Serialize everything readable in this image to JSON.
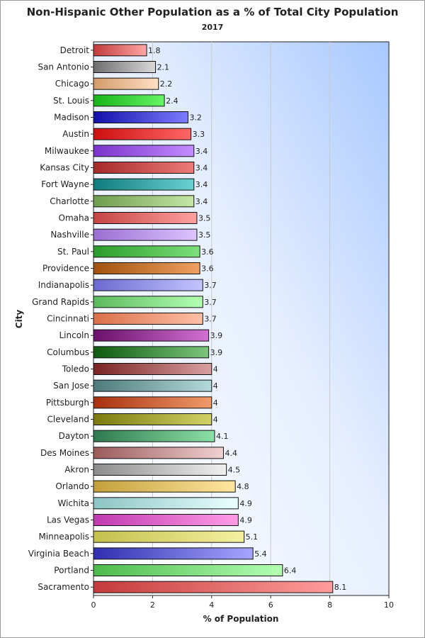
{
  "chart_data": {
    "type": "bar",
    "orientation": "horizontal",
    "title": "Non-Hispanic Other Population as a % of Total City Population",
    "subtitle": "2017",
    "xlabel": "% of Population",
    "ylabel": "City",
    "xlim": [
      0,
      10
    ],
    "xticks": [
      0,
      2,
      4,
      6,
      8,
      10
    ],
    "grid": true,
    "categories": [
      "Detroit",
      "San Antonio",
      "Chicago",
      "St. Louis",
      "Madison",
      "Austin",
      "Milwaukee",
      "Kansas City",
      "Fort Wayne",
      "Charlotte",
      "Omaha",
      "Nashville",
      "St. Paul",
      "Providence",
      "Indianapolis",
      "Grand Rapids",
      "Cincinnati",
      "Lincoln",
      "Columbus",
      "Toledo",
      "San Jose",
      "Pittsburgh",
      "Cleveland",
      "Dayton",
      "Des Moines",
      "Akron",
      "Orlando",
      "Wichita",
      "Las Vegas",
      "Minneapolis",
      "Virginia Beach",
      "Portland",
      "Sacramento"
    ],
    "values": [
      1.8,
      2.1,
      2.2,
      2.4,
      3.2,
      3.3,
      3.4,
      3.4,
      3.4,
      3.4,
      3.5,
      3.5,
      3.6,
      3.6,
      3.7,
      3.7,
      3.7,
      3.9,
      3.9,
      4,
      4,
      4,
      4,
      4.1,
      4.4,
      4.5,
      4.8,
      4.9,
      4.9,
      5.1,
      5.4,
      6.4,
      8.1
    ],
    "value_labels": [
      "1.8",
      "2.1",
      "2.2",
      "2.4",
      "3.2",
      "3.3",
      "3.4",
      "3.4",
      "3.4",
      "3.4",
      "3.5",
      "3.5",
      "3.6",
      "3.6",
      "3.7",
      "3.7",
      "3.7",
      "3.9",
      "3.9",
      "4",
      "4",
      "4",
      "4",
      "4.1",
      "4.4",
      "4.5",
      "4.8",
      "4.9",
      "4.9",
      "5.1",
      "5.4",
      "6.4",
      "8.1"
    ],
    "colors": [
      [
        "#c23b3b",
        "#ffa6a6"
      ],
      [
        "#6e6e6e",
        "#d9d9d9"
      ],
      [
        "#d49b6a",
        "#ffe0c4"
      ],
      [
        "#19b319",
        "#66f566"
      ],
      [
        "#1111aa",
        "#7c7cff"
      ],
      [
        "#cc0f0f",
        "#ff6666"
      ],
      [
        "#7a33cc",
        "#c48cff"
      ],
      [
        "#a52a2a",
        "#ee7a7a"
      ],
      [
        "#0f7b7b",
        "#6ad1d1"
      ],
      [
        "#6e9c4d",
        "#c4e6a6"
      ],
      [
        "#c44444",
        "#ffa0a0"
      ],
      [
        "#9b6ed1",
        "#dcc4ff"
      ],
      [
        "#2a9c2a",
        "#7ce07c"
      ],
      [
        "#a0520f",
        "#f0a060"
      ],
      [
        "#6a6ad1",
        "#c4c4ff"
      ],
      [
        "#5cba5c",
        "#b3ffb3"
      ],
      [
        "#d9704a",
        "#ffc0a6"
      ],
      [
        "#6a0f6a",
        "#d170d1"
      ],
      [
        "#0f5a0f",
        "#7cc47c"
      ],
      [
        "#7a2323",
        "#d9a0a0"
      ],
      [
        "#4d7a7a",
        "#b3dada"
      ],
      [
        "#a8300f",
        "#f09a6a"
      ],
      [
        "#7a7a0f",
        "#d1d166"
      ],
      [
        "#2f7a4d",
        "#8ce0a6"
      ],
      [
        "#9b5a5a",
        "#f0d1d1"
      ],
      [
        "#8c8c8c",
        "#f0f0f0"
      ],
      [
        "#c4a03a",
        "#ffe6a0"
      ],
      [
        "#8cc4c4",
        "#eaffff"
      ],
      [
        "#c03ab0",
        "#ff9ce6"
      ],
      [
        "#c4c04d",
        "#f5f0a0"
      ],
      [
        "#2f2fb0",
        "#a6a6ff"
      ],
      [
        "#4dba4d",
        "#b3ffb3"
      ],
      [
        "#c43b3b",
        "#ff9c9c"
      ]
    ]
  }
}
